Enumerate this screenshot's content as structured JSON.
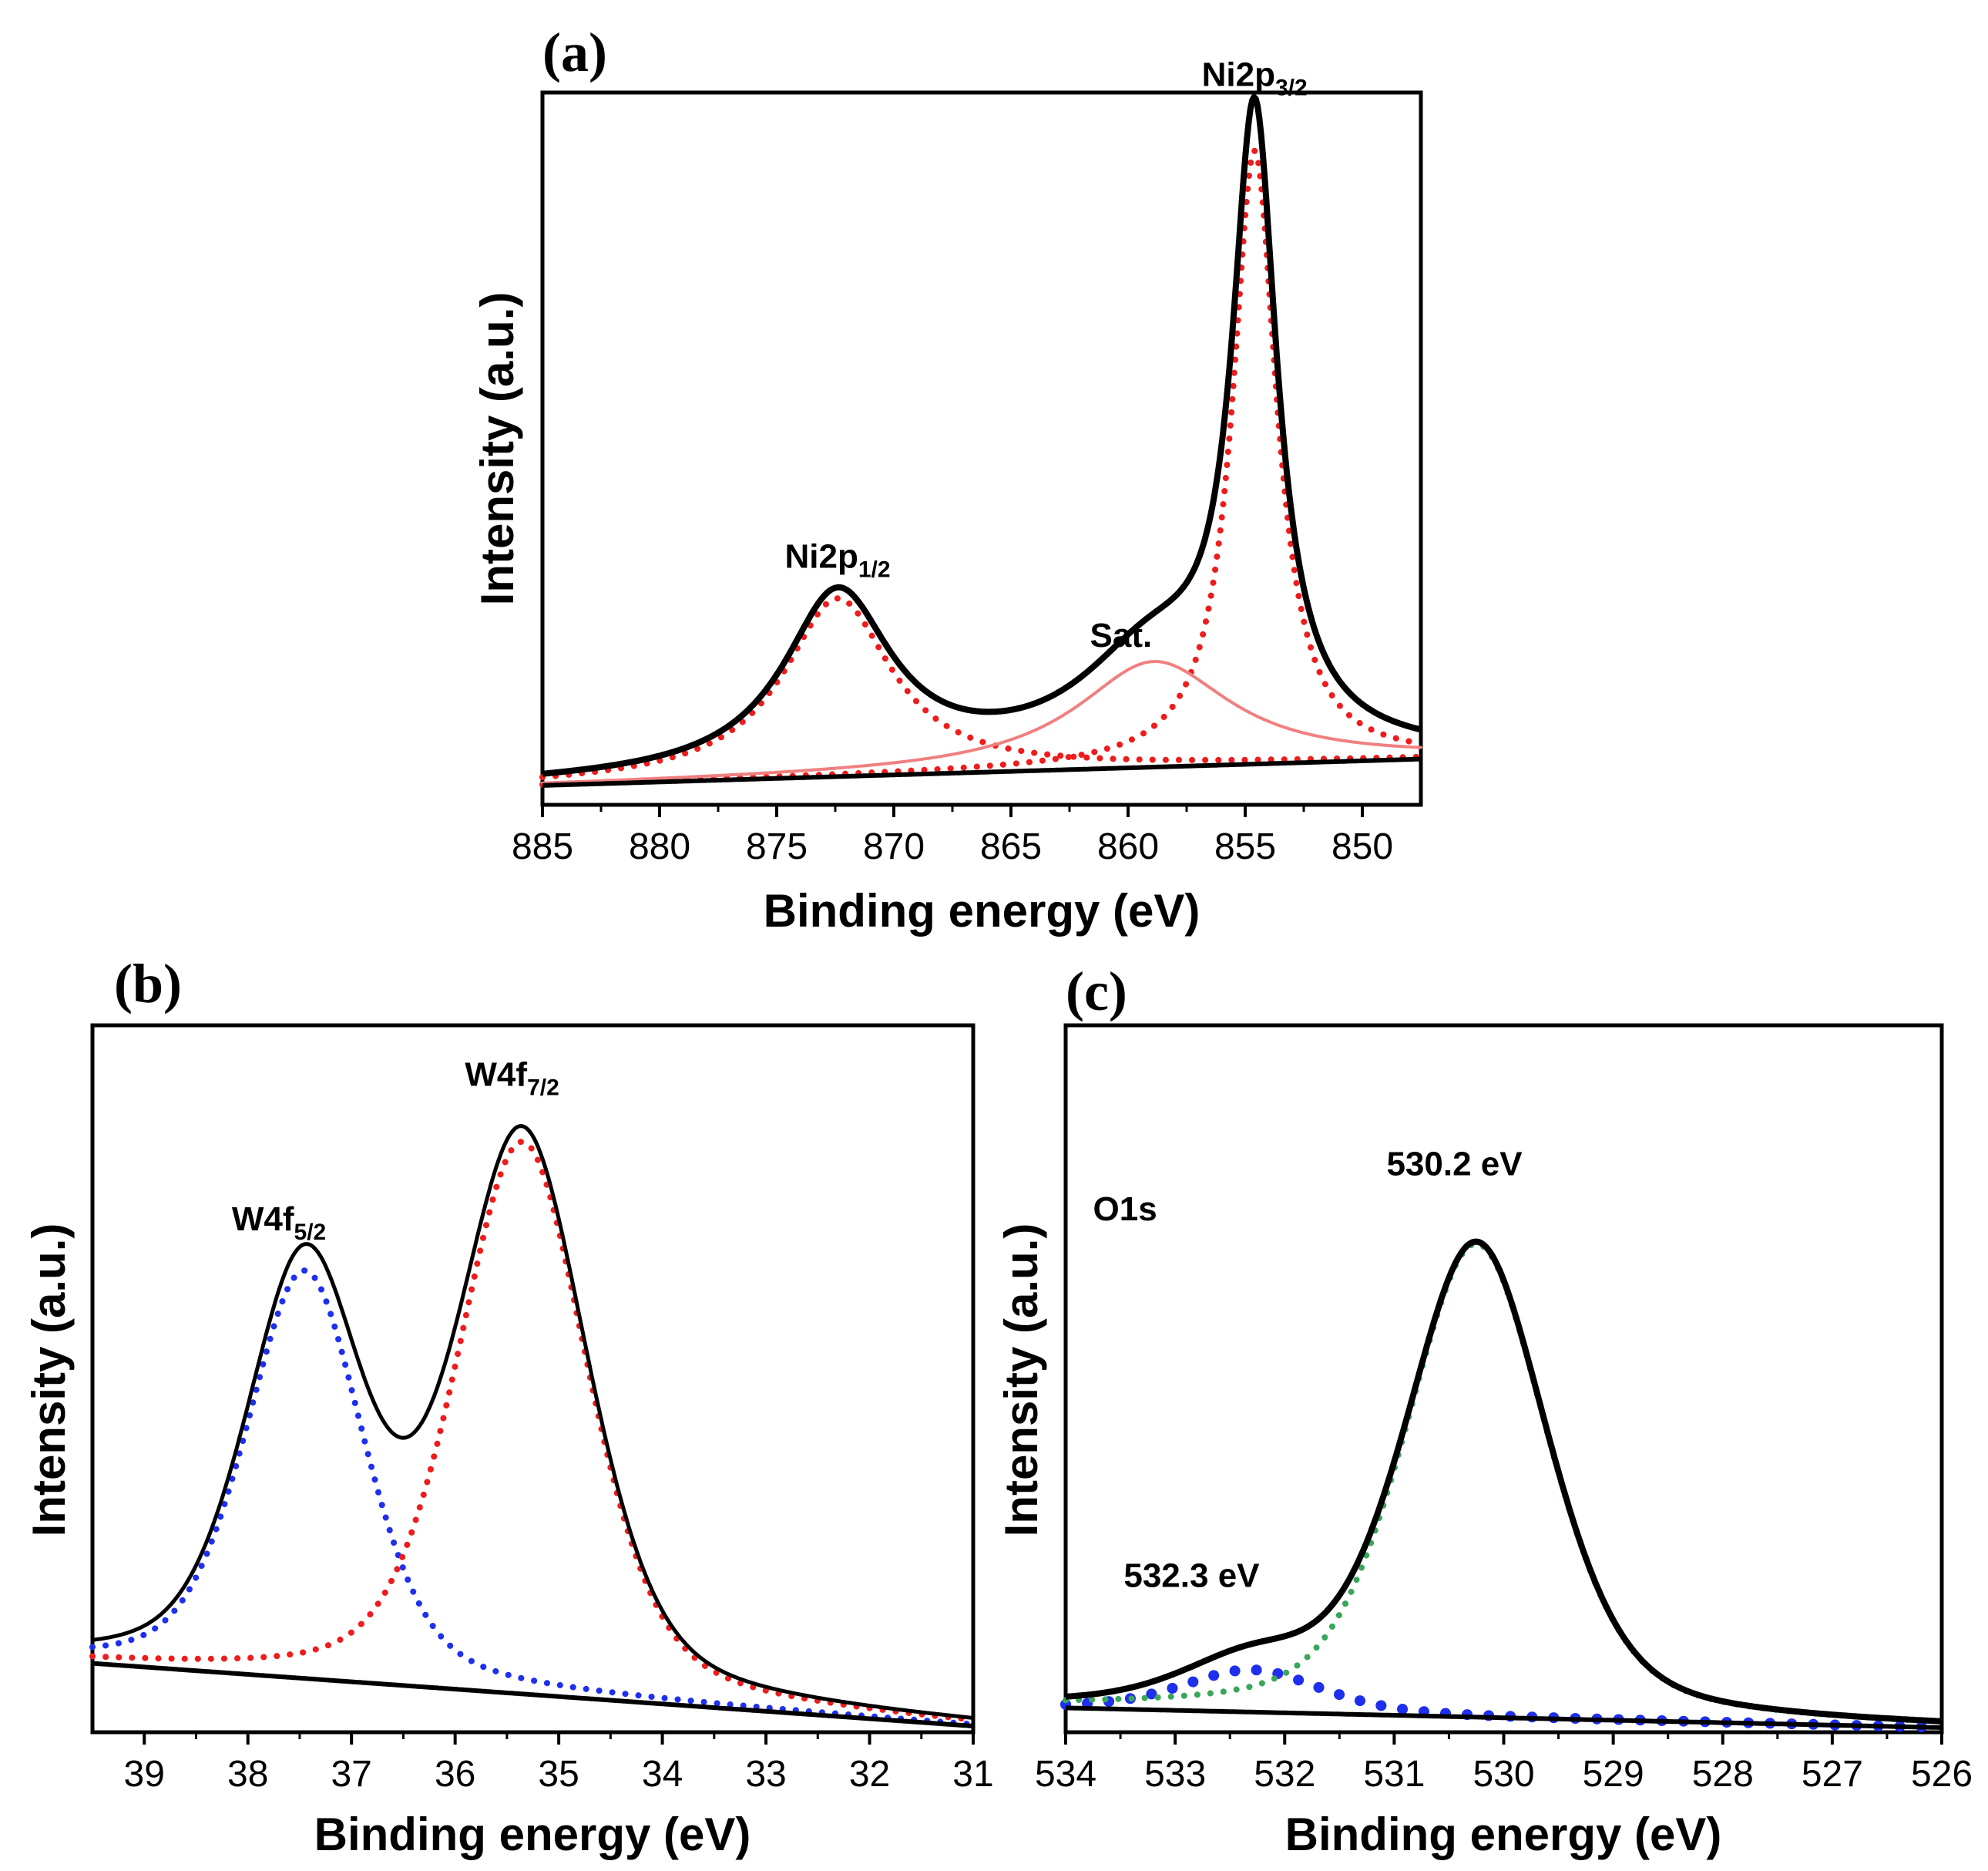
{
  "figure": {
    "panels": [
      "(a)",
      "(b)",
      "(c)"
    ]
  },
  "colors": {
    "envelope": "#000000",
    "fit_red": "#ee1c1c",
    "satellite": "#f08080",
    "fit_blue": "#1f2fee",
    "fit_green": "#3aa65a"
  },
  "chart_data": [
    {
      "panel": "(a)",
      "type": "line",
      "xlabel": "Binding energy (eV)",
      "ylabel": "Intensity (a.u.)",
      "xlim": [
        885,
        847.5
      ],
      "x_reversed": true,
      "ylim": [
        0,
        1.0
      ],
      "xticks": [
        885,
        880,
        875,
        870,
        865,
        860,
        855,
        850
      ],
      "background": {
        "x": [
          885,
          847.5
        ],
        "y": [
          0.02,
          0.06
        ]
      },
      "peaks": [
        {
          "name": "Ni2p_1/2",
          "center": 872.4,
          "height": 0.27,
          "fwhm": 5.6,
          "style": "dotted",
          "color": "fit_red"
        },
        {
          "name": "Ni2p_3/2",
          "center": 854.6,
          "height": 0.93,
          "fwhm": 2.3,
          "style": "dotted",
          "color": "fit_red"
        },
        {
          "name": "Sat.",
          "center": 858.9,
          "height": 0.16,
          "fwhm": 8.0,
          "style": "solid",
          "color": "satellite"
        }
      ],
      "annotations": [
        {
          "base": "Ni2p",
          "sub": "3/2",
          "x": 854.6,
          "y": 1.08
        },
        {
          "base": "Ni2p",
          "sub": "1/2",
          "x": 872.4,
          "y": 0.35
        },
        {
          "base": "Sat.",
          "sub": "",
          "x": 860.3,
          "y": 0.23
        }
      ]
    },
    {
      "panel": "(b)",
      "type": "line",
      "xlabel": "Binding energy (eV)",
      "ylabel": "Intensity (a.u.)",
      "xlim": [
        39.5,
        31
      ],
      "x_reversed": true,
      "ylim": [
        0,
        1.0
      ],
      "xticks": [
        39,
        38,
        37,
        36,
        35,
        34,
        33,
        32,
        31
      ],
      "background": {
        "x": [
          39.5,
          31
        ],
        "y": [
          0.1,
          0.0
        ]
      },
      "peaks": [
        {
          "name": "W4f_5/2",
          "center": 37.45,
          "height": 0.65,
          "fwhm": 1.35,
          "style": "dotted",
          "color": "fit_blue"
        },
        {
          "name": "W4f_7/2",
          "center": 35.35,
          "height": 0.88,
          "fwhm": 1.5,
          "style": "dotted",
          "color": "fit_red"
        }
      ],
      "annotations": [
        {
          "base": "W4f",
          "sub": "7/2",
          "x": 35.45,
          "y": 1.02
        },
        {
          "base": "W4f",
          "sub": "5/2",
          "x": 37.7,
          "y": 0.79
        }
      ]
    },
    {
      "panel": "(c)",
      "type": "line",
      "xlabel": "Binding energy (eV)",
      "ylabel": "Intensity (a.u.)",
      "xlim": [
        534,
        526
      ],
      "x_reversed": true,
      "ylim": [
        0,
        1.0
      ],
      "xticks": [
        534,
        533,
        532,
        531,
        530,
        529,
        528,
        527,
        526
      ],
      "background": {
        "x": [
          534,
          526
        ],
        "y": [
          0.035,
          0.0
        ]
      },
      "peaks": [
        {
          "name": "532.3 eV",
          "center": 532.3,
          "height": 0.075,
          "fwhm": 1.5,
          "style": "dots-large",
          "color": "fit_blue"
        },
        {
          "name": "530.2 eV",
          "center": 530.25,
          "height": 0.84,
          "fwhm": 1.55,
          "style": "dotted",
          "color": "fit_green"
        }
      ],
      "annotations": [
        {
          "base": "O1s",
          "sub": "",
          "x": 533.75,
          "y": 0.9
        },
        {
          "base": "530.2 eV",
          "sub": "",
          "x": 530.45,
          "y": 0.98
        },
        {
          "base": "532.3 eV",
          "sub": "",
          "x": 532.85,
          "y": 0.25
        }
      ]
    }
  ]
}
